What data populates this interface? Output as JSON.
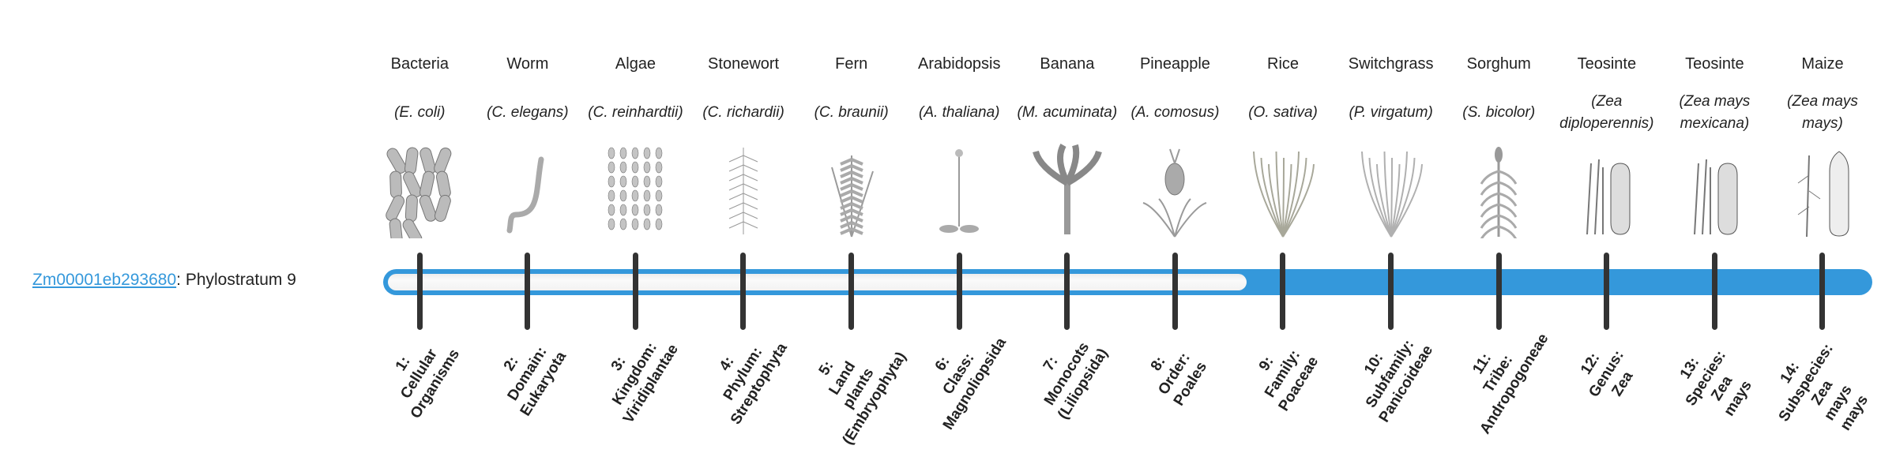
{
  "gene": {
    "id": "Zm00001eb293680",
    "suffix": ": Phylostratum 9",
    "phylostratum": 9
  },
  "colors": {
    "accent": "#3498db",
    "tick": "#333333",
    "track": "#f2f2f2"
  },
  "organisms": [
    {
      "common": "Bacteria",
      "scientific": "(E. coli)",
      "icon": "bacteria-icon"
    },
    {
      "common": "Worm",
      "scientific": "(C. elegans)",
      "icon": "worm-icon"
    },
    {
      "common": "Algae",
      "scientific": "(C. reinhardtii)",
      "icon": "algae-icon"
    },
    {
      "common": "Stonewort",
      "scientific": "(C. richardii)",
      "icon": "stonewort-icon"
    },
    {
      "common": "Fern",
      "scientific": "(C. braunii)",
      "icon": "fern-icon"
    },
    {
      "common": "Arabidopsis",
      "scientific": "(A. thaliana)",
      "icon": "arabidopsis-icon"
    },
    {
      "common": "Banana",
      "scientific": "(M. acuminata)",
      "icon": "banana-icon"
    },
    {
      "common": "Pineapple",
      "scientific": "(A. comosus)",
      "icon": "pineapple-icon"
    },
    {
      "common": "Rice",
      "scientific": "(O. sativa)",
      "icon": "rice-icon"
    },
    {
      "common": "Switchgrass",
      "scientific": "(P. virgatum)",
      "icon": "switchgrass-icon"
    },
    {
      "common": "Sorghum",
      "scientific": "(S. bicolor)",
      "icon": "sorghum-icon"
    },
    {
      "common": "Teosinte",
      "scientific": "(Zea diploperennis)",
      "icon": "teosinte-icon"
    },
    {
      "common": "Teosinte",
      "scientific": "(Zea mays mexicana)",
      "icon": "teosinte-icon"
    },
    {
      "common": "Maize",
      "scientific": "(Zea mays mays)",
      "icon": "maize-icon"
    }
  ],
  "strata": [
    "1: Cellular Organisms",
    "2: Domain: Eukaryota",
    "3: Kingdom: Viridiplantae",
    "4: Phylum: Streptophyta",
    "5: Land plants (Embryophyta)",
    "6: Class: Magnoliopsida",
    "7: Monocots (Liliopsida)",
    "8: Order: Poales",
    "9: Family: Poaceae",
    "10: Subfamily: Panicoideae",
    "11: Tribe: Andropogoneae",
    "12: Genus: Zea",
    "13: Species: Zea mays",
    "14: Subspecies: Zea mays mays"
  ]
}
